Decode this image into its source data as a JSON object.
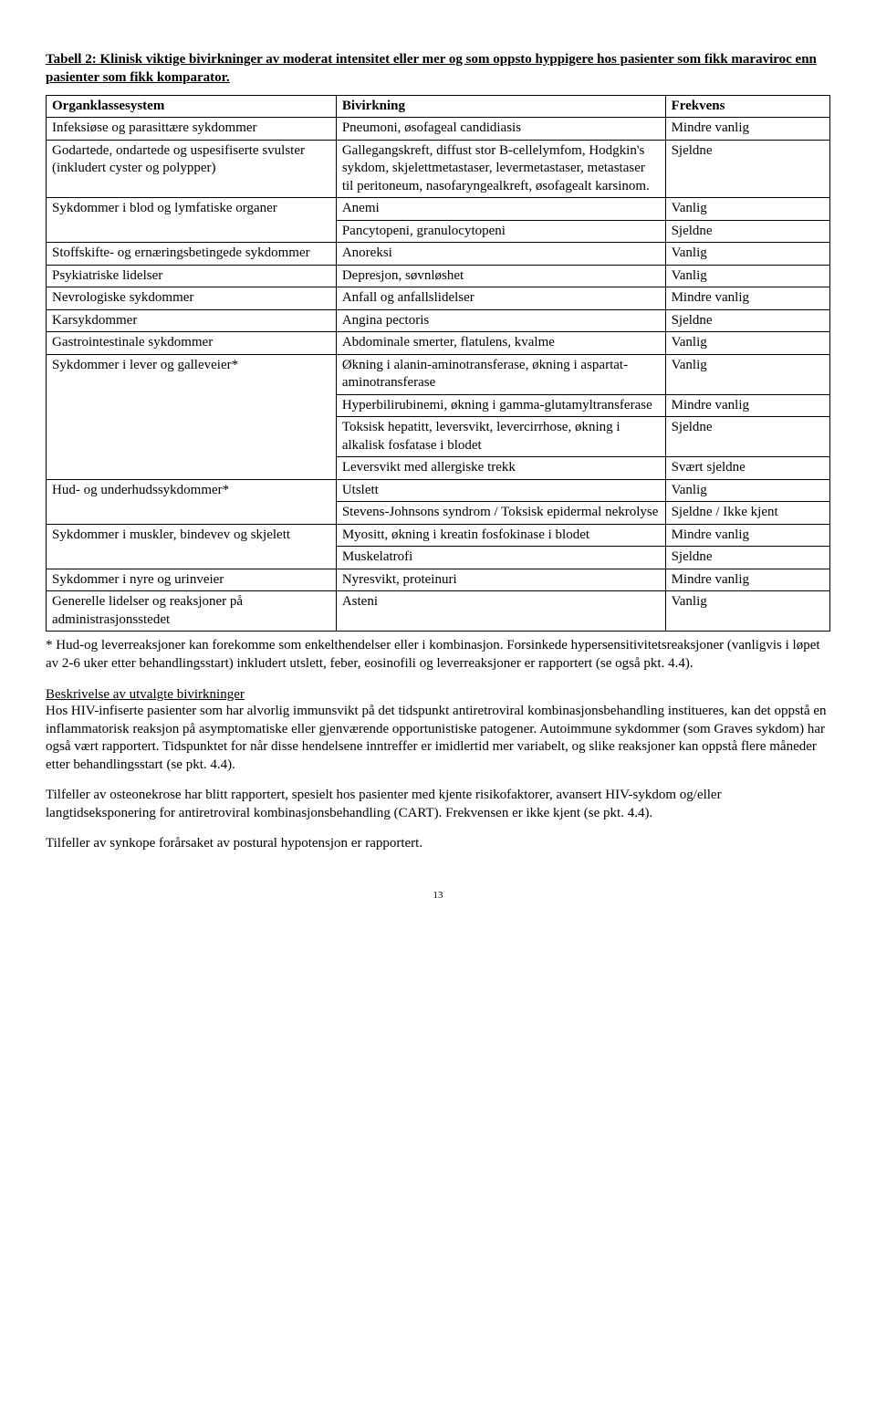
{
  "title": "Tabell 2: Klinisk viktige bivirkninger av moderat intensitet eller mer og som oppsto hyppigere hos pasienter som fikk maraviroc enn pasienter som fikk komparator.",
  "table": {
    "headers": [
      "Organklassesystem",
      "Bivirkning",
      "Frekvens"
    ],
    "rows": [
      [
        "Infeksiøse og parasittære sykdommer",
        "Pneumoni, øsofageal candidiasis",
        "Mindre vanlig"
      ],
      [
        "Godartede, ondartede og uspesifiserte svulster (inkludert cyster og polypper)",
        "Gallegangskreft, diffust stor B-cellelymfom, Hodgkin's sykdom, skjelettmetastaser, levermetastaser, metastaser til peritoneum, nasofaryngealkreft, øsofagealt karsinom.",
        "Sjeldne"
      ],
      [
        "Sykdommer i blod og lymfatiske organer",
        "Anemi",
        "Vanlig"
      ],
      [
        "",
        "Pancytopeni, granulocytopeni",
        "Sjeldne"
      ],
      [
        "Stoffskifte- og ernæringsbetingede sykdommer",
        "Anoreksi",
        "Vanlig"
      ],
      [
        "Psykiatriske lidelser",
        "Depresjon, søvnløshet",
        "Vanlig"
      ],
      [
        "Nevrologiske sykdommer",
        "Anfall og anfallslidelser",
        "Mindre vanlig"
      ],
      [
        "Karsykdommer",
        "Angina pectoris",
        "Sjeldne"
      ],
      [
        "Gastrointestinale sykdommer",
        "Abdominale smerter, flatulens, kvalme",
        "Vanlig"
      ],
      [
        "Sykdommer i lever og galleveier*",
        "Økning i alanin-aminotransferase, økning i aspartat-aminotransferase",
        "Vanlig"
      ],
      [
        "",
        "Hyperbilirubinemi, økning i gamma-glutamyltransferase",
        "Mindre vanlig"
      ],
      [
        "",
        "Toksisk hepatitt, leversvikt, levercirrhose, økning i alkalisk fosfatase i blodet",
        "Sjeldne"
      ],
      [
        "",
        "Leversvikt med allergiske trekk",
        "Svært sjeldne"
      ],
      [
        "Hud- og underhudssykdommer*",
        "Utslett",
        "Vanlig"
      ],
      [
        "",
        "Stevens-Johnsons syndrom / Toksisk epidermal nekrolyse",
        "Sjeldne / Ikke kjent"
      ],
      [
        "Sykdommer i muskler, bindevev og skjelett",
        "Myositt, økning i kreatin fosfokinase i blodet",
        "Mindre vanlig"
      ],
      [
        "",
        "Muskelatrofi",
        "Sjeldne"
      ],
      [
        "Sykdommer i nyre og urinveier",
        "Nyresvikt, proteinuri",
        "Mindre vanlig"
      ],
      [
        "Generelle lidelser og reaksjoner på administrasjonsstedet",
        "Asteni",
        "Vanlig"
      ]
    ],
    "rowspans": {
      "2": 2,
      "9": 4,
      "13": 2,
      "15": 2
    }
  },
  "footnote": "* Hud-og leverreaksjoner kan forekomme som enkelthendelser eller i kombinasjon. Forsinkede hypersensitivitetsreaksjoner (vanligvis i løpet av 2-6 uker etter behandlingsstart) inkludert utslett, feber, eosinofili og leverreaksjoner er rapportert (se også pkt. 4.4).",
  "sectionHeading": "Beskrivelse av utvalgte bivirkninger",
  "para1": "Hos HIV-infiserte pasienter som har alvorlig immunsvikt på det tidspunkt antiretroviral kombinasjonsbehandling institueres, kan det oppstå en inflammatorisk reaksjon på asymptomatiske eller gjenværende opportunistiske patogener. Autoimmune sykdommer (som Graves sykdom) har også vært rapportert. Tidspunktet for når disse hendelsene inntreffer er imidlertid mer variabelt, og slike reaksjoner kan oppstå flere måneder etter behandlingsstart (se pkt. 4.4).",
  "para2": "Tilfeller av osteonekrose har blitt rapportert, spesielt hos pasienter med kjente risikofaktorer, avansert HIV-sykdom og/eller langtidseksponering for antiretroviral kombinasjonsbehandling (CART). Frekvensen er ikke kjent (se pkt. 4.4).",
  "para3": "Tilfeller av synkope forårsaket av postural hypotensjon er rapportert.",
  "pageNumber": "13"
}
